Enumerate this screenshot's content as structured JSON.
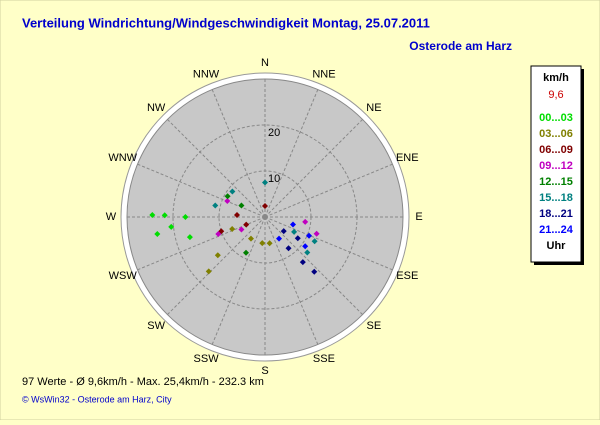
{
  "chart_data": {
    "type": "polar_scatter",
    "title": "Verteilung Windrichtung/Windgeschwindigkeit  Montag, 25.07.2011",
    "subtitle": "Osterode am Harz",
    "directions": [
      "N",
      "NNE",
      "NE",
      "ENE",
      "E",
      "ESE",
      "SE",
      "SSE",
      "S",
      "SSW",
      "SW",
      "WSW",
      "W",
      "WNW",
      "NW",
      "NNW"
    ],
    "rlim": [
      0,
      30
    ],
    "rticks": [
      10,
      20
    ],
    "legend_title": "km/h",
    "legend_current": "9,6",
    "legend_footer": "Uhr",
    "series": [
      {
        "name": "00...03",
        "color": "#00dd00",
        "direction": [
          271,
          271,
          261,
          264,
          270,
          255
        ],
        "values": [
          24.5,
          21.8,
          23.7,
          20.5,
          17.3,
          16.9
        ]
      },
      {
        "name": "03...06",
        "color": "#808000",
        "direction": [
          226,
          231,
          250,
          186,
          170,
          213
        ],
        "values": [
          17,
          13.2,
          7.6,
          5.7,
          5.8,
          5.6
        ]
      },
      {
        "name": "06...09",
        "color": "#800000",
        "direction": [
          0,
          248,
          274,
          252
        ],
        "values": [
          2.4,
          4.4,
          6.1,
          10
        ]
      },
      {
        "name": "09...12",
        "color": "#c000c0",
        "direction": [
          293,
          250,
          242,
          97,
          108
        ],
        "values": [
          8.9,
          10.8,
          5.8,
          8.8,
          11.8
        ]
      },
      {
        "name": "12...15",
        "color": "#008000",
        "direction": [
          299,
          296,
          208
        ],
        "values": [
          9.3,
          5.7,
          8.8
        ]
      },
      {
        "name": "15...18",
        "color": "#008080",
        "direction": [
          0,
          283,
          308,
          130,
          116,
          117
        ],
        "values": [
          7.5,
          11.1,
          9,
          12,
          12,
          7.1
        ]
      },
      {
        "name": "18...21",
        "color": "#000080",
        "direction": [
          127,
          123,
          140,
          138,
          143
        ],
        "values": [
          5.1,
          8.5,
          12.8,
          16,
          8.5
        ]
      },
      {
        "name": "21...24",
        "color": "#0000ff",
        "direction": [
          147,
          105,
          126,
          113
        ],
        "values": [
          5.6,
          6.3,
          10.8,
          10.4
        ]
      }
    ],
    "footer": "97 Werte   -   Ø 9,6km/h   -   Max. 25,4km/h   -   232.3 km",
    "credit": "© WsWin32   -   Osterode am Harz, City"
  }
}
